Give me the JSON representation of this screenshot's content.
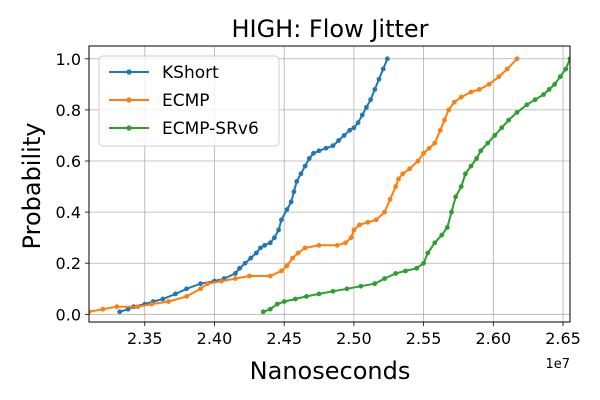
{
  "chart_data": {
    "type": "line",
    "title": "HIGH: Flow Jitter",
    "xlabel": "Nanoseconds",
    "ylabel": "Probability",
    "x_offset_label": "1e7",
    "xlim": [
      2.31,
      2.655
    ],
    "ylim": [
      -0.03,
      1.05
    ],
    "xticks": [
      2.35,
      2.4,
      2.45,
      2.5,
      2.55,
      2.6,
      2.65
    ],
    "xtick_labels": [
      "2.35",
      "2.40",
      "2.45",
      "2.50",
      "2.55",
      "2.60",
      "2.65"
    ],
    "yticks": [
      0.0,
      0.2,
      0.4,
      0.6,
      0.8,
      1.0
    ],
    "ytick_labels": [
      "0.0",
      "0.2",
      "0.4",
      "0.6",
      "0.8",
      "1.0"
    ],
    "grid": true,
    "legend_position": "top-left",
    "series": [
      {
        "name": "KShort",
        "color": "#1f77b4",
        "points": [
          [
            2.332,
            0.01
          ],
          [
            2.338,
            0.02
          ],
          [
            2.342,
            0.03
          ],
          [
            2.35,
            0.04
          ],
          [
            2.356,
            0.05
          ],
          [
            2.363,
            0.06
          ],
          [
            2.372,
            0.08
          ],
          [
            2.38,
            0.1
          ],
          [
            2.39,
            0.12
          ],
          [
            2.4,
            0.13
          ],
          [
            2.407,
            0.14
          ],
          [
            2.415,
            0.16
          ],
          [
            2.418,
            0.18
          ],
          [
            2.422,
            0.2
          ],
          [
            2.426,
            0.22
          ],
          [
            2.43,
            0.24
          ],
          [
            2.433,
            0.26
          ],
          [
            2.436,
            0.27
          ],
          [
            2.44,
            0.28
          ],
          [
            2.443,
            0.3
          ],
          [
            2.446,
            0.33
          ],
          [
            2.448,
            0.37
          ],
          [
            2.452,
            0.41
          ],
          [
            2.455,
            0.44
          ],
          [
            2.457,
            0.48
          ],
          [
            2.459,
            0.52
          ],
          [
            2.462,
            0.55
          ],
          [
            2.465,
            0.58
          ],
          [
            2.468,
            0.61
          ],
          [
            2.471,
            0.63
          ],
          [
            2.475,
            0.64
          ],
          [
            2.48,
            0.65
          ],
          [
            2.485,
            0.66
          ],
          [
            2.489,
            0.68
          ],
          [
            2.493,
            0.7
          ],
          [
            2.497,
            0.72
          ],
          [
            2.5,
            0.73
          ],
          [
            2.503,
            0.75
          ],
          [
            2.506,
            0.78
          ],
          [
            2.509,
            0.81
          ],
          [
            2.512,
            0.84
          ],
          [
            2.515,
            0.88
          ],
          [
            2.518,
            0.92
          ],
          [
            2.521,
            0.96
          ],
          [
            2.524,
            1.0
          ]
        ]
      },
      {
        "name": "ECMP",
        "color": "#ff7f0e",
        "points": [
          [
            2.31,
            0.01
          ],
          [
            2.32,
            0.02
          ],
          [
            2.33,
            0.03
          ],
          [
            2.345,
            0.03
          ],
          [
            2.355,
            0.04
          ],
          [
            2.367,
            0.05
          ],
          [
            2.38,
            0.07
          ],
          [
            2.39,
            0.1
          ],
          [
            2.395,
            0.12
          ],
          [
            2.405,
            0.13
          ],
          [
            2.415,
            0.14
          ],
          [
            2.425,
            0.15
          ],
          [
            2.44,
            0.15
          ],
          [
            2.448,
            0.17
          ],
          [
            2.452,
            0.19
          ],
          [
            2.456,
            0.22
          ],
          [
            2.46,
            0.24
          ],
          [
            2.465,
            0.26
          ],
          [
            2.475,
            0.27
          ],
          [
            2.488,
            0.27
          ],
          [
            2.494,
            0.28
          ],
          [
            2.498,
            0.3
          ],
          [
            2.5,
            0.33
          ],
          [
            2.504,
            0.35
          ],
          [
            2.51,
            0.36
          ],
          [
            2.516,
            0.37
          ],
          [
            2.522,
            0.4
          ],
          [
            2.526,
            0.45
          ],
          [
            2.53,
            0.5
          ],
          [
            2.532,
            0.53
          ],
          [
            2.535,
            0.55
          ],
          [
            2.54,
            0.57
          ],
          [
            2.546,
            0.6
          ],
          [
            2.55,
            0.63
          ],
          [
            2.554,
            0.65
          ],
          [
            2.558,
            0.67
          ],
          [
            2.562,
            0.72
          ],
          [
            2.565,
            0.76
          ],
          [
            2.568,
            0.8
          ],
          [
            2.572,
            0.83
          ],
          [
            2.577,
            0.85
          ],
          [
            2.584,
            0.87
          ],
          [
            2.59,
            0.88
          ],
          [
            2.597,
            0.9
          ],
          [
            2.604,
            0.93
          ],
          [
            2.61,
            0.96
          ],
          [
            2.617,
            1.0
          ]
        ]
      },
      {
        "name": "ECMP-SRv6",
        "color": "#2ca02c",
        "points": [
          [
            2.435,
            0.01
          ],
          [
            2.44,
            0.02
          ],
          [
            2.445,
            0.04
          ],
          [
            2.45,
            0.05
          ],
          [
            2.458,
            0.06
          ],
          [
            2.466,
            0.07
          ],
          [
            2.475,
            0.08
          ],
          [
            2.485,
            0.09
          ],
          [
            2.495,
            0.1
          ],
          [
            2.505,
            0.11
          ],
          [
            2.515,
            0.12
          ],
          [
            2.522,
            0.14
          ],
          [
            2.53,
            0.16
          ],
          [
            2.537,
            0.17
          ],
          [
            2.545,
            0.18
          ],
          [
            2.55,
            0.2
          ],
          [
            2.553,
            0.24
          ],
          [
            2.558,
            0.28
          ],
          [
            2.563,
            0.31
          ],
          [
            2.567,
            0.34
          ],
          [
            2.57,
            0.4
          ],
          [
            2.573,
            0.46
          ],
          [
            2.577,
            0.5
          ],
          [
            2.58,
            0.55
          ],
          [
            2.584,
            0.58
          ],
          [
            2.588,
            0.61
          ],
          [
            2.591,
            0.64
          ],
          [
            2.596,
            0.67
          ],
          [
            2.601,
            0.7
          ],
          [
            2.606,
            0.73
          ],
          [
            2.611,
            0.76
          ],
          [
            2.617,
            0.79
          ],
          [
            2.624,
            0.82
          ],
          [
            2.63,
            0.84
          ],
          [
            2.636,
            0.86
          ],
          [
            2.64,
            0.88
          ],
          [
            2.644,
            0.9
          ],
          [
            2.648,
            0.93
          ],
          [
            2.652,
            0.96
          ],
          [
            2.655,
            1.0
          ]
        ]
      }
    ]
  }
}
